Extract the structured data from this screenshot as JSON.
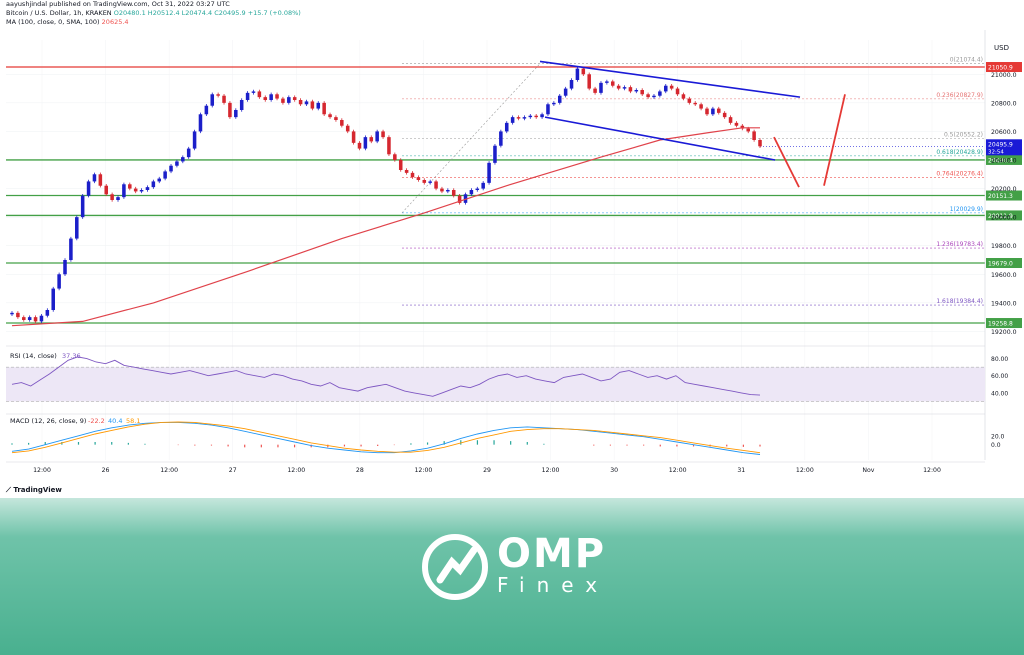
{
  "publisher": "aayushjindal published on TradingView.com, Oct 31, 2022 03:27 UTC",
  "symbol_line": {
    "name": "Bitcoin / U.S. Dollar, 1h, KRAKEN",
    "ohlc": "O20480.1  H20512.4  L20474.4  C20495.9  +15.7 (+0.08%)"
  },
  "ma_line": {
    "label": "MA (100, close, 0, SMA, 100)",
    "value": "20625.4"
  },
  "rsi": {
    "label": "RSI (14, close)",
    "value": "37.36"
  },
  "macd": {
    "label": "MACD (12, 26, close, 9)",
    "v1": "-22.2",
    "v2": "40.4",
    "v3": "58.1"
  },
  "currency": "USD",
  "brand": "TradingView",
  "logo": {
    "name": "OMP",
    "sub": "Finex"
  },
  "colors": {
    "up": "#1b1fc9",
    "down": "#d5272f",
    "ma": "#e0434b",
    "support": "#43a047",
    "resistance": "#e53935",
    "channel": "#1a1ad6",
    "rsi": "#7e57c2",
    "macd": "#2196f3",
    "signal": "#ff9800",
    "accent_bg": "#49b08f"
  },
  "chart_data": {
    "type": "candlestick",
    "symbol": "BTC/USD",
    "timeframe": "1h",
    "x_ticks": [
      "12:00",
      "26",
      "12:00",
      "27",
      "12:00",
      "28",
      "12:00",
      "29",
      "12:00",
      "30",
      "12:00",
      "31",
      "12:00",
      "Nov",
      "12:00"
    ],
    "y_ticks": [
      19200,
      19400,
      19600,
      19800,
      20000,
      20200,
      20400,
      20600,
      20800,
      21000
    ],
    "ylim": [
      19140,
      21240
    ],
    "price_levels": [
      {
        "label": "21050.9",
        "value": 21050.9,
        "kind": "resistance"
      },
      {
        "label": "20400.4",
        "value": 20400.4,
        "kind": "support"
      },
      {
        "label": "20151.3",
        "value": 20151.3,
        "kind": "support"
      },
      {
        "label": "20011.9",
        "value": 20011.9,
        "kind": "support"
      },
      {
        "label": "19679.0",
        "value": 19679.0,
        "kind": "support"
      },
      {
        "label": "19258.8",
        "value": 19258.8,
        "kind": "support"
      }
    ],
    "fib_levels": [
      {
        "label": "0(21074.4)",
        "value": 21074.4
      },
      {
        "label": "0.236(20827.9)",
        "value": 20827.9
      },
      {
        "label": "0.5(20552.2)",
        "value": 20552.2
      },
      {
        "label": "0.618(20428.9)",
        "value": 20428.9
      },
      {
        "label": "0.764(20276.4)",
        "value": 20276.4
      },
      {
        "label": "1(20029.9)",
        "value": 20029.9
      },
      {
        "label": "1.236(19783.4)",
        "value": 19783.4
      },
      {
        "label": "1.618(19384.4)",
        "value": 19384.4
      }
    ],
    "current_price": {
      "label": "20495.9",
      "value": 20495.9,
      "countdown": "32:54"
    },
    "closes": [
      19330,
      19300,
      19280,
      19300,
      19270,
      19310,
      19350,
      19500,
      19600,
      19700,
      19850,
      20000,
      20150,
      20250,
      20300,
      20220,
      20160,
      20120,
      20140,
      20230,
      20200,
      20180,
      20190,
      20210,
      20250,
      20270,
      20320,
      20360,
      20390,
      20420,
      20480,
      20600,
      20720,
      20780,
      20860,
      20850,
      20800,
      20700,
      20750,
      20820,
      20870,
      20880,
      20840,
      20820,
      20860,
      20830,
      20800,
      20840,
      20820,
      20790,
      20810,
      20760,
      20800,
      20720,
      20700,
      20680,
      20640,
      20600,
      20520,
      20480,
      20560,
      20530,
      20600,
      20560,
      20440,
      20400,
      20330,
      20310,
      20280,
      20260,
      20240,
      20250,
      20200,
      20180,
      20190,
      20150,
      20100,
      20160,
      20190,
      20200,
      20240,
      20380,
      20500,
      20600,
      20660,
      20700,
      20690,
      20700,
      20710,
      20700,
      20720,
      20790,
      20800,
      20850,
      20900,
      20960,
      21040,
      21000,
      20900,
      20870,
      20940,
      20950,
      20920,
      20900,
      20910,
      20880,
      20890,
      20860,
      20840,
      20850,
      20880,
      20920,
      20900,
      20860,
      20830,
      20800,
      20790,
      20760,
      20720,
      20760,
      20730,
      20700,
      20660,
      20640,
      20620,
      20600,
      20540,
      20495.9
    ],
    "ma100": [
      [
        0,
        19240
      ],
      [
        12,
        19270
      ],
      [
        24,
        19400
      ],
      [
        40,
        19620
      ],
      [
        56,
        19850
      ],
      [
        70,
        20030
      ],
      [
        84,
        20220
      ],
      [
        100,
        20420
      ],
      [
        110,
        20540
      ],
      [
        118,
        20590
      ],
      [
        124,
        20625.4
      ],
      [
        127,
        20625.4
      ]
    ],
    "rsi_series": [
      50,
      52,
      48,
      55,
      62,
      70,
      78,
      82,
      80,
      76,
      74,
      78,
      72,
      70,
      68,
      66,
      64,
      62,
      64,
      66,
      63,
      60,
      62,
      64,
      66,
      62,
      60,
      58,
      62,
      60,
      56,
      54,
      50,
      48,
      52,
      46,
      44,
      42,
      46,
      48,
      50,
      46,
      42,
      40,
      38,
      36,
      40,
      44,
      48,
      46,
      50,
      56,
      60,
      62,
      58,
      60,
      56,
      54,
      52,
      58,
      60,
      62,
      58,
      54,
      56,
      64,
      66,
      62,
      58,
      60,
      56,
      60,
      52,
      50,
      48,
      46,
      44,
      42,
      40,
      38,
      37.36
    ],
    "rsi_levels": [
      70,
      30
    ],
    "rsi_ylim": [
      20,
      90
    ],
    "macd_ylim": [
      -30,
      60
    ],
    "macd_line": [
      -15,
      -10,
      0,
      10,
      20,
      30,
      38,
      44,
      48,
      50,
      50,
      48,
      44,
      38,
      30,
      22,
      14,
      6,
      -2,
      -8,
      -12,
      -16,
      -18,
      -18,
      -14,
      -8,
      2,
      14,
      24,
      32,
      38,
      40,
      38,
      36,
      34,
      30,
      26,
      22,
      18,
      12,
      6,
      0,
      -6,
      -12,
      -18,
      -22.2
    ],
    "signal_line": [
      -18,
      -14,
      -6,
      4,
      14,
      24,
      32,
      40,
      46,
      50,
      51,
      50,
      46,
      42,
      36,
      28,
      20,
      12,
      4,
      -2,
      -8,
      -12,
      -15,
      -17,
      -17,
      -13,
      -6,
      4,
      14,
      22,
      30,
      34,
      36,
      36,
      34,
      32,
      28,
      24,
      20,
      16,
      10,
      4,
      -2,
      -8,
      -13,
      -18
    ]
  }
}
